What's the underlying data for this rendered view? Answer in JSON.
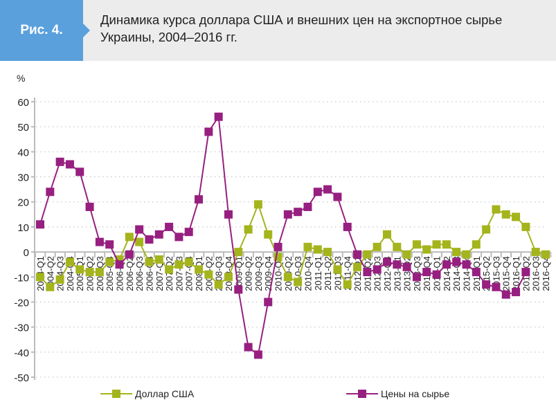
{
  "header": {
    "figure_label": "Рис. 4.",
    "title": "Динамика курса доллара США и внешних цен на экспортное сырье Украины, 2004–2016 гг."
  },
  "chart_data": {
    "type": "line",
    "title": "Динамика курса доллара США и внешних цен на экспортное сырье Украины, 2004–2016 гг.",
    "ylabel": "%",
    "xlabel": "",
    "ylim": [
      -50,
      60
    ],
    "yticks": [
      60,
      50,
      40,
      30,
      20,
      10,
      0,
      -10,
      -20,
      -30,
      -40,
      -50
    ],
    "grid": true,
    "legend": "bottom",
    "categories": [
      "2004-Q1",
      "2004-Q2",
      "2004-Q3",
      "2004-Q4",
      "2005-Q1",
      "2005-Q2",
      "2005-Q3",
      "2005-Q4",
      "2006-Q1",
      "2006-Q2",
      "2006-Q3",
      "2006-Q4",
      "2007-Q1",
      "2007-Q2",
      "2007-Q3",
      "2007-Q4",
      "2008-Q1",
      "2008-Q2",
      "2008-Q3",
      "2008-Q4",
      "2009-Q1",
      "2009-Q2",
      "2009-Q3",
      "2009-Q4",
      "2010-Q1",
      "2010-Q2",
      "2010-Q3",
      "2010-Q4",
      "2011-Q1",
      "2011-Q2",
      "2011-Q3",
      "2011-Q4",
      "2012-Q1",
      "2012-Q2",
      "2012-Q3",
      "2012-Q4",
      "2013-Q1",
      "2013-Q2",
      "2013-Q3",
      "2013-Q4",
      "2014-Q1",
      "2014-Q2",
      "2014-Q3",
      "2014-Q4",
      "2015-Q1",
      "2015-Q2",
      "2015-Q3",
      "2015-Q4",
      "2016-Q1",
      "2016-Q2",
      "2016-Q3",
      "2016-Q4"
    ],
    "series": [
      {
        "name": "Доллар США",
        "color": "#a4b41c",
        "values": [
          -10,
          -14,
          -11,
          -4,
          -7,
          -8,
          -8,
          -4,
          -3,
          6,
          4,
          -4,
          -3,
          -7,
          -5,
          -4,
          -7,
          -9,
          -13,
          -10,
          0,
          9,
          19,
          7,
          -2,
          -10,
          -12,
          2,
          1,
          0,
          -7,
          -13,
          -6,
          -1,
          2,
          7,
          2,
          -1,
          3,
          1,
          3,
          3,
          0,
          -1,
          3,
          9,
          17,
          15,
          14,
          10,
          0,
          -1
        ]
      },
      {
        "name": "Цены на сырье",
        "color": "#971f80",
        "values": [
          11,
          24,
          36,
          35,
          32,
          18,
          4,
          3,
          -5,
          -1,
          9,
          5,
          7,
          10,
          6,
          8,
          21,
          48,
          54,
          15,
          -15,
          -38,
          -41,
          -20,
          2,
          15,
          16,
          18,
          24,
          25,
          22,
          10,
          -1,
          -8,
          -7,
          -4,
          -5,
          -6,
          -10,
          -8,
          -9,
          -5,
          -4,
          -5,
          -8,
          -13,
          -14,
          -17,
          -16,
          -8,
          null,
          null
        ]
      }
    ]
  }
}
